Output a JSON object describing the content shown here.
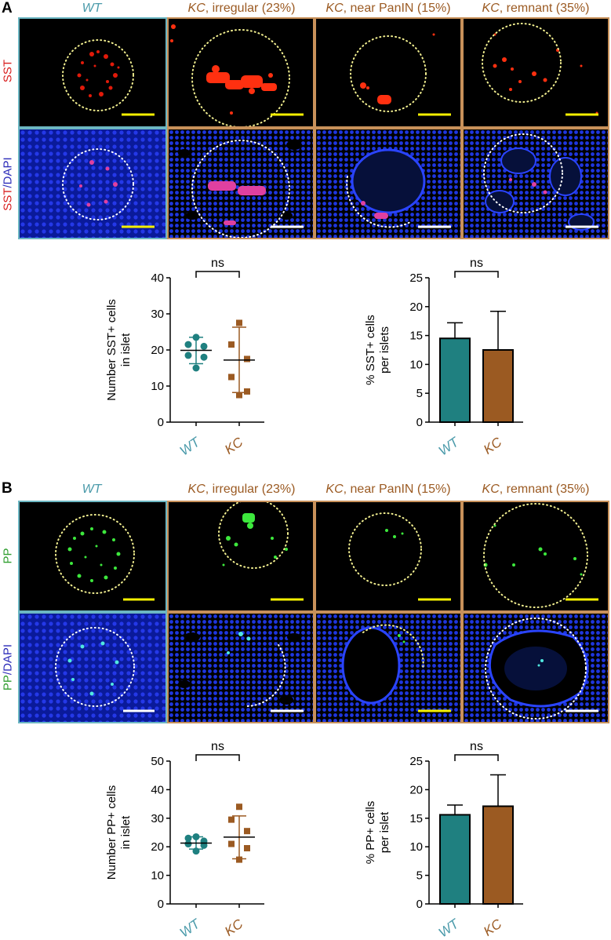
{
  "panel_a": {
    "letter": "A",
    "columns": {
      "wt": "WT",
      "kc1_kc": "KC",
      "kc1_rest": ", irregular (23%)",
      "kc2_kc": "KC",
      "kc2_rest": ", near PanIN (15%)",
      "kc3_kc": "KC",
      "kc3_rest": ", remnant (35%)"
    },
    "row1_label": "SST",
    "row2_label_a": "SST",
    "row2_label_sep": "/",
    "row2_label_b": "DAPI"
  },
  "panel_b": {
    "letter": "B",
    "columns": {
      "wt": "WT",
      "kc1_kc": "KC",
      "kc1_rest": ", irregular (23%)",
      "kc2_kc": "KC",
      "kc2_rest": ", near PanIN (15%)",
      "kc3_kc": "KC",
      "kc3_rest": ", remnant (35%)"
    },
    "row1_label": "PP",
    "row2_label_a": "PP",
    "row2_label_sep": "/",
    "row2_label_b": "DAPI"
  },
  "colors": {
    "wt": "#1f8080",
    "kc": "#9b5a22",
    "wt_label": "#4a9aaa",
    "kc_label": "#9b5a22",
    "sst": "#ff2a10",
    "pp": "#33ee33",
    "dapi": "#1a2fd8"
  },
  "chart_data": [
    {
      "id": "sst_count",
      "type": "scatter",
      "ylabel_line1": "Number SST+ cells",
      "ylabel_line2": "in islet",
      "categories": [
        "WT",
        "KC"
      ],
      "ylim": [
        0,
        40
      ],
      "yticks": [
        0,
        10,
        20,
        30,
        40
      ],
      "points": {
        "WT": [
          23.5,
          21.5,
          21,
          18.5,
          18,
          15
        ],
        "KC": [
          27.5,
          21.5,
          17.5,
          12.5,
          8.5,
          7.5
        ]
      },
      "mean": [
        19.9,
        17.2
      ],
      "sd_upper": [
        23.5,
        26.3
      ],
      "sd_lower": [
        16.2,
        8.2
      ],
      "significance": "ns"
    },
    {
      "id": "sst_percent",
      "type": "bar",
      "ylabel_line1": "% SST+ cells",
      "ylabel_line2": "per islets",
      "categories": [
        "WT",
        "KC"
      ],
      "values": [
        14.5,
        12.5
      ],
      "error_upper": [
        17.2,
        19.2
      ],
      "ylim": [
        0,
        25
      ],
      "yticks": [
        0,
        5,
        10,
        15,
        20,
        25
      ],
      "significance": "ns"
    },
    {
      "id": "pp_count",
      "type": "scatter",
      "ylabel_line1": "Number PP+ cells",
      "ylabel_line2": "in islet",
      "categories": [
        "WT",
        "KC"
      ],
      "ylim": [
        0,
        50
      ],
      "yticks": [
        0,
        10,
        20,
        30,
        40,
        50
      ],
      "points": {
        "WT": [
          23.5,
          23,
          22,
          21,
          20.5,
          18.5
        ],
        "KC": [
          34,
          29.5,
          25.5,
          21,
          19.5,
          15.5
        ]
      },
      "mean": [
        21.3,
        23.4
      ],
      "sd_upper": [
        23.5,
        30.8
      ],
      "sd_lower": [
        19.2,
        15.8
      ],
      "significance": "ns"
    },
    {
      "id": "pp_percent",
      "type": "bar",
      "ylabel_line1": "% PP+ cells",
      "ylabel_line2": "per islet",
      "categories": [
        "WT",
        "KC"
      ],
      "values": [
        15.6,
        17.1
      ],
      "error_upper": [
        17.3,
        22.6
      ],
      "ylim": [
        0,
        25
      ],
      "yticks": [
        0,
        5,
        10,
        15,
        20,
        25
      ],
      "significance": "ns"
    }
  ]
}
